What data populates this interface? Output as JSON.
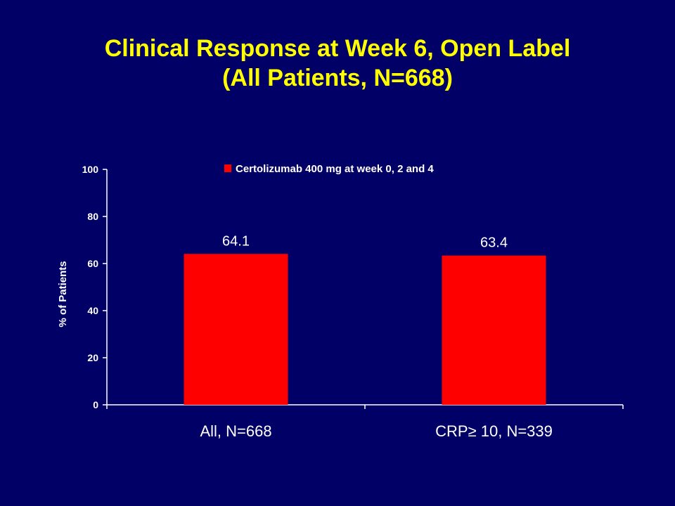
{
  "slide": {
    "title_line1": "Clinical Response at Week 6, Open Label",
    "title_line2": "(All Patients, N=668)"
  },
  "colors": {
    "background": "#000066",
    "title": "#ffff00",
    "bar": "#ff0000",
    "axis": "#ffffff"
  },
  "chart_data": {
    "type": "bar",
    "categories": [
      "All, N=668",
      "CRP≥ 10, N=339"
    ],
    "series": [
      {
        "name": "Certolizumab 400 mg at week 0, 2 and 4",
        "values": [
          64.1,
          63.4
        ]
      }
    ],
    "data_labels": [
      "64.1",
      "63.4"
    ],
    "ylabel": "% of Patients",
    "xlabel": "",
    "ylim": [
      0,
      100
    ],
    "yticks": [
      0,
      20,
      40,
      60,
      80,
      100
    ],
    "grid": false,
    "legend_position": "top"
  }
}
